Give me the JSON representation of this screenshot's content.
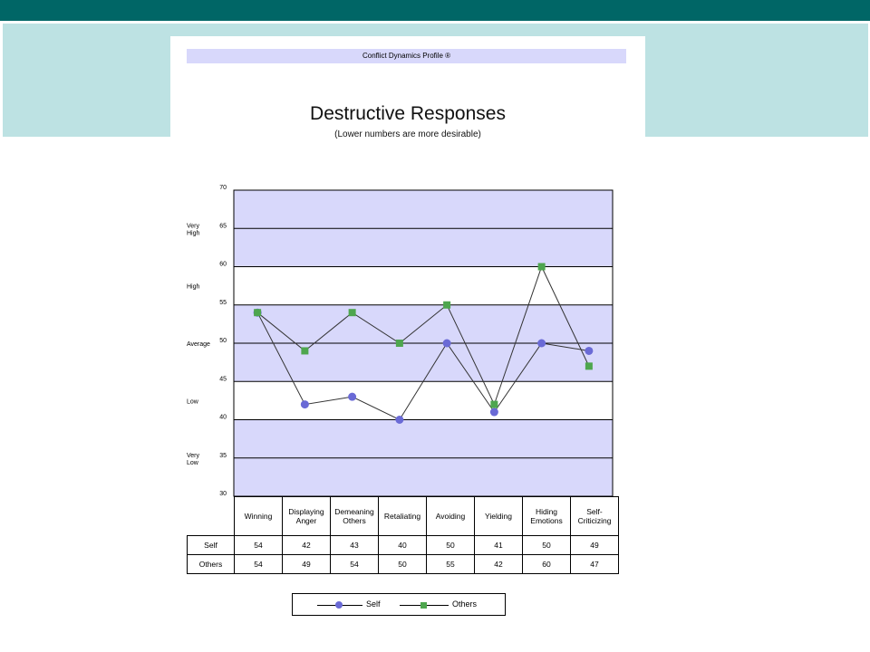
{
  "header": {
    "report_name": "Conflict Dynamics Profile ®"
  },
  "chart_data": {
    "type": "line",
    "title": "Destructive Responses",
    "subtitle": "(Lower numbers are more desirable)",
    "categories": [
      "Winning",
      "Displaying Anger",
      "Demeaning Others",
      "Retaliating",
      "Avoiding",
      "Yielding",
      "Hiding Emotions",
      "Self-Criticizing"
    ],
    "category_lines": [
      [
        "Winning"
      ],
      [
        "Displaying",
        "Anger"
      ],
      [
        "Demeaning",
        "Others"
      ],
      [
        "Retaliating"
      ],
      [
        "Avoiding"
      ],
      [
        "Yielding"
      ],
      [
        "Hiding",
        "Emotions"
      ],
      [
        "Self-",
        "Criticizing"
      ]
    ],
    "series": [
      {
        "name": "Self",
        "values": [
          54,
          42,
          43,
          40,
          50,
          41,
          50,
          49
        ],
        "color": "#6a6ad6",
        "marker": "circle"
      },
      {
        "name": "Others",
        "values": [
          54,
          49,
          54,
          50,
          55,
          42,
          60,
          47
        ],
        "color": "#4ea64e",
        "marker": "square"
      }
    ],
    "ylim": [
      30,
      70
    ],
    "yticks": [
      30,
      35,
      40,
      45,
      50,
      55,
      60,
      65,
      70
    ],
    "bands": [
      {
        "from": 30,
        "to": 40,
        "label": [
          "Very",
          "Low"
        ],
        "shaded": true
      },
      {
        "from": 40,
        "to": 45,
        "label": [
          "Low"
        ],
        "shaded": false
      },
      {
        "from": 45,
        "to": 55,
        "label": [
          "Average"
        ],
        "shaded": true
      },
      {
        "from": 55,
        "to": 60,
        "label": [
          "High"
        ],
        "shaded": false
      },
      {
        "from": 60,
        "to": 70,
        "label": [
          "Very",
          "High"
        ],
        "shaded": true
      }
    ],
    "band_fill": "#d8d8fb",
    "grid": true,
    "legend_position": "bottom"
  },
  "table": {
    "rows": [
      {
        "label": "Self",
        "values": [
          "54",
          "42",
          "43",
          "40",
          "50",
          "41",
          "50",
          "49"
        ]
      },
      {
        "label": "Others",
        "values": [
          "54",
          "49",
          "54",
          "50",
          "55",
          "42",
          "60",
          "47"
        ]
      }
    ]
  },
  "legend": {
    "self_label": "Self",
    "others_label": "Others"
  },
  "colors": {
    "top_bar": "#006666",
    "header_band": "#bde2e3"
  }
}
